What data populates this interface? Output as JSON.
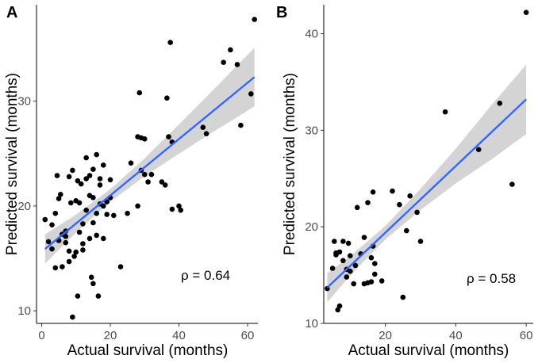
{
  "chart_data": [
    {
      "panel": "A",
      "type": "scatter",
      "xlabel": "Actual survival (months)",
      "ylabel": "Predicted survival (months)",
      "xlim": [
        -1.5,
        63
      ],
      "ylim": [
        8.8,
        39.2
      ],
      "xticks": [
        "0",
        "20",
        "40",
        "60"
      ],
      "xtick_values": [
        0,
        20,
        40,
        60
      ],
      "yticks": [
        "10",
        "20",
        "30"
      ],
      "ytick_values": [
        10,
        20,
        30
      ],
      "annotation": "ρ = 0.64",
      "fit": {
        "x0": 1,
        "y0": 15.9,
        "x1": 62,
        "y1": 32.3
      },
      "band": {
        "x": [
          1,
          10,
          20,
          30,
          40,
          50,
          62
        ],
        "half_width": [
          1.4,
          0.85,
          0.6,
          0.85,
          1.4,
          2.0,
          2.8
        ]
      },
      "points": [
        [
          1,
          18.7
        ],
        [
          2,
          16.6
        ],
        [
          3,
          15.9
        ],
        [
          3,
          18.2
        ],
        [
          4,
          14.1
        ],
        [
          4,
          19.3
        ],
        [
          4.5,
          22.9
        ],
        [
          5,
          20.7
        ],
        [
          5,
          16.7
        ],
        [
          5.5,
          21.1
        ],
        [
          6,
          14.2
        ],
        [
          6,
          17.3
        ],
        [
          7,
          16.5
        ],
        [
          7,
          17.6
        ],
        [
          7,
          17.1
        ],
        [
          8,
          22.8
        ],
        [
          8,
          15.7
        ],
        [
          8,
          14.7
        ],
        [
          8.5,
          20.3
        ],
        [
          9,
          23.4
        ],
        [
          9,
          9.4
        ],
        [
          9.5,
          15.2
        ],
        [
          10,
          15.6
        ],
        [
          10,
          20.5
        ],
        [
          10.5,
          22.4
        ],
        [
          10.5,
          11.4
        ],
        [
          11,
          20.3
        ],
        [
          11,
          17.5
        ],
        [
          11.5,
          22.1
        ],
        [
          12,
          15.8
        ],
        [
          12,
          18.3
        ],
        [
          12,
          16.4
        ],
        [
          13,
          24.6
        ],
        [
          13,
          22.6
        ],
        [
          13,
          19.6
        ],
        [
          14,
          21.0
        ],
        [
          14,
          22.9
        ],
        [
          14,
          16.9
        ],
        [
          14.5,
          13.2
        ],
        [
          15,
          20.8
        ],
        [
          15,
          23.5
        ],
        [
          15,
          18.4
        ],
        [
          15,
          12.6
        ],
        [
          16,
          19.3
        ],
        [
          16,
          17.2
        ],
        [
          16,
          24.9
        ],
        [
          16.5,
          11.4
        ],
        [
          17,
          20.2
        ],
        [
          17,
          22.0
        ],
        [
          17,
          22.6
        ],
        [
          18,
          16.9
        ],
        [
          18,
          20.0
        ],
        [
          18,
          23.9
        ],
        [
          19,
          20.4
        ],
        [
          19,
          19.2
        ],
        [
          20,
          22.5
        ],
        [
          20,
          20.8
        ],
        [
          21,
          19.1
        ],
        [
          23,
          14.2
        ],
        [
          25,
          19.3
        ],
        [
          26,
          24.1
        ],
        [
          28,
          26.6
        ],
        [
          28,
          20.0
        ],
        [
          29,
          26.5
        ],
        [
          29,
          23.4
        ],
        [
          30,
          26.4
        ],
        [
          30,
          23.0
        ],
        [
          31,
          22.3
        ],
        [
          32,
          23.0
        ],
        [
          35,
          22.3
        ],
        [
          36,
          22.0
        ],
        [
          37,
          26.6
        ],
        [
          38,
          19.7
        ],
        [
          38,
          26.1
        ],
        [
          40,
          20.0
        ],
        [
          40.5,
          19.6
        ],
        [
          47,
          27.5
        ],
        [
          48,
          26.9
        ],
        [
          53,
          33.7
        ],
        [
          55,
          34.9
        ],
        [
          57,
          33.5
        ],
        [
          58,
          27.7
        ],
        [
          61,
          30.7
        ],
        [
          62,
          37.8
        ],
        [
          28.5,
          30.8
        ],
        [
          36.5,
          30.3
        ],
        [
          37.5,
          35.6
        ]
      ]
    },
    {
      "panel": "B",
      "type": "scatter",
      "xlabel": "Actual survival (months)",
      "ylabel": "Predicted survival (months)",
      "xlim": [
        2.5,
        62
      ],
      "ylim": [
        10,
        43
      ],
      "xticks": [
        "20",
        "40",
        "60"
      ],
      "xtick_values": [
        20,
        40,
        60
      ],
      "yticks": [
        "10",
        "20",
        "30",
        "40"
      ],
      "ytick_values": [
        10,
        20,
        30,
        40
      ],
      "annotation": "ρ = 0.58",
      "fit": {
        "x0": 3.5,
        "y0": 13.7,
        "x1": 60,
        "y1": 33.2
      },
      "band": {
        "x": [
          3.5,
          10,
          20,
          30,
          40,
          50,
          60
        ],
        "half_width": [
          1.5,
          1.0,
          0.7,
          1.1,
          1.8,
          2.8,
          3.6
        ]
      },
      "points": [
        [
          3.5,
          13.6
        ],
        [
          5,
          15.7
        ],
        [
          5.5,
          18.5
        ],
        [
          6,
          17.3
        ],
        [
          6,
          17.1
        ],
        [
          6.5,
          11.4
        ],
        [
          7,
          17.4
        ],
        [
          7,
          11.8
        ],
        [
          8,
          18.5
        ],
        [
          8,
          16.5
        ],
        [
          9,
          15.6
        ],
        [
          9,
          14.8
        ],
        [
          9.5,
          18.3
        ],
        [
          10,
          15.4
        ],
        [
          10,
          17.0
        ],
        [
          11,
          14.1
        ],
        [
          11.5,
          16.0
        ],
        [
          12,
          22.0
        ],
        [
          13,
          17.2
        ],
        [
          14,
          18.9
        ],
        [
          14,
          14.1
        ],
        [
          15,
          22.5
        ],
        [
          15,
          14.2
        ],
        [
          16,
          16.8
        ],
        [
          16,
          14.3
        ],
        [
          16.5,
          23.6
        ],
        [
          16.5,
          18.0
        ],
        [
          17,
          16.2
        ],
        [
          17,
          15.1
        ],
        [
          19,
          14.4
        ],
        [
          22,
          23.7
        ],
        [
          24,
          22.3
        ],
        [
          25,
          12.7
        ],
        [
          26,
          19.6
        ],
        [
          27,
          23.2
        ],
        [
          29,
          21.5
        ],
        [
          30,
          18.5
        ],
        [
          37,
          31.9
        ],
        [
          46.5,
          28.0
        ],
        [
          52.5,
          32.8
        ],
        [
          56,
          24.4
        ],
        [
          60,
          42.2
        ]
      ]
    }
  ]
}
